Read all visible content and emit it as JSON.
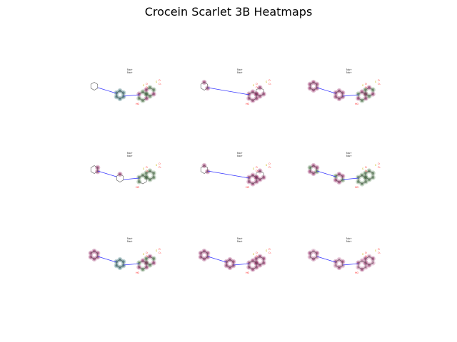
{
  "figure": {
    "title": "Crocein Scarlet 3B Heatmaps"
  },
  "molecule": {
    "counterion_line_1": "Na+",
    "counterion_line_2": "Na+",
    "hydroxyl_label": "HO",
    "sulfonate_o_label": "O",
    "sulfonate_ominus_label": "O-",
    "sulfur_label": "S",
    "azo_n_label": "N"
  },
  "colors": {
    "background": "#ffffff",
    "bond": "#555555",
    "nitrogen": "#3333ff",
    "oxygen": "#ff2020",
    "sulfur": "#c8b400",
    "positive_heat": "#3d6b3a",
    "negative_heat": "#8b1a5a",
    "teal_heat": "#1f5e63"
  },
  "panels": [
    {
      "row": 1,
      "col": 1,
      "layout": "biphenyl",
      "heat": "mixed_teal_green"
    },
    {
      "row": 1,
      "col": 2,
      "layout": "phenyl",
      "heat": "magenta_center"
    },
    {
      "row": 1,
      "col": 3,
      "layout": "biphenyl",
      "heat": "magenta_with_green"
    },
    {
      "row": 2,
      "col": 1,
      "layout": "biphenyl",
      "heat": "green_naphthalene"
    },
    {
      "row": 2,
      "col": 2,
      "layout": "phenyl",
      "heat": "magenta_center"
    },
    {
      "row": 2,
      "col": 3,
      "layout": "biphenyl",
      "heat": "green_heavy"
    },
    {
      "row": 3,
      "col": 1,
      "layout": "biphenyl",
      "heat": "pink_green"
    },
    {
      "row": 3,
      "col": 2,
      "layout": "biphenyl",
      "heat": "magenta_strong"
    },
    {
      "row": 3,
      "col": 3,
      "layout": "biphenyl",
      "heat": "magenta_light"
    }
  ]
}
